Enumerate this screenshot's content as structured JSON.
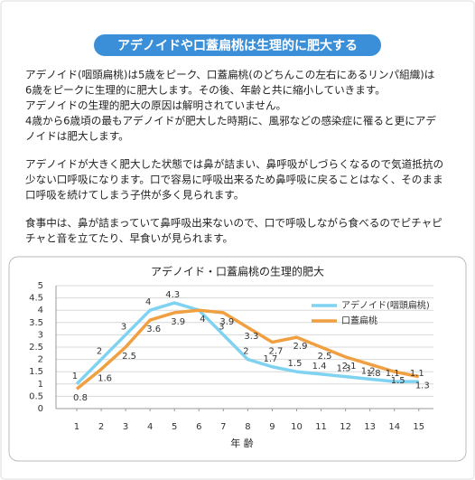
{
  "header": {
    "title": "アデノイドや口蓋扁桃は生理的に肥大する"
  },
  "paragraphs": [
    [
      "アデノイド(咽頭扁桃)は5歳をピーク、口蓋扁桃(のどちんこの左右にあるリンパ組織)は",
      "6歳をピークに生理的に肥大します。その後、年齢と共に縮小していきます。",
      "アデノイドの生理的肥大の原因は解明されていません。",
      "4歳から6歳頃の最もアデノイドが肥大した時期に、風邪などの感染症に罹ると更にアデ",
      "ノイドは肥大します。"
    ],
    [
      "アデノイドが大きく肥大した状態では鼻が詰まい、鼻呼吸がしづらくなるので気道抵抗の",
      "少ない口呼吸になります。口で容易に呼吸出来るため鼻呼吸に戻ることはなく、そのまま",
      "口呼吸を続けてしまう子供が多く見られます。"
    ],
    [
      "食事中は、鼻が詰まっていて鼻呼吸出来ないので、口で呼吸しながら食べるのでピチャピ",
      "チャと音を立てたり、早食いが見られます。"
    ]
  ],
  "chart_data": {
    "type": "line",
    "title": "アデノイド・口蓋扁桃の生理的肥大",
    "x_label": "年 齢",
    "x": [
      1,
      2,
      3,
      4,
      5,
      6,
      7,
      8,
      9,
      10,
      11,
      12,
      13,
      14,
      15
    ],
    "xlim": [
      0.15,
      15.6
    ],
    "xticks": [
      1,
      2,
      3,
      4,
      5,
      6,
      7,
      8,
      9,
      10,
      11,
      12,
      13,
      14,
      15
    ],
    "ylim": [
      0,
      5
    ],
    "yticks": [
      0,
      0.5,
      1,
      1.5,
      2,
      2.5,
      3,
      3.5,
      4,
      4.5,
      5
    ],
    "grid": true,
    "legend": "upper right",
    "series": [
      {
        "name": "アデノイド(咽頭扁桃)",
        "color": "#7fd3f0",
        "values": [
          1,
          2,
          3,
          4,
          4.3,
          4,
          3,
          2,
          1.7,
          1.5,
          1.4,
          1.3,
          1.2,
          1.1,
          1.1
        ],
        "value_labels": [
          "1",
          "2",
          "3",
          "4",
          "4.3",
          null,
          "3",
          "2",
          "1.7",
          "1.5",
          "1.4",
          "1.3",
          "1.2",
          "1.1",
          "1.1"
        ]
      },
      {
        "name": "口蓋扁桃",
        "color": "#f0a040",
        "values": [
          0.8,
          1.6,
          2.5,
          3.6,
          3.9,
          4,
          3.9,
          3.3,
          2.7,
          2.9,
          2.5,
          2.1,
          1.8,
          1.5,
          1.3
        ]
      }
    ]
  }
}
